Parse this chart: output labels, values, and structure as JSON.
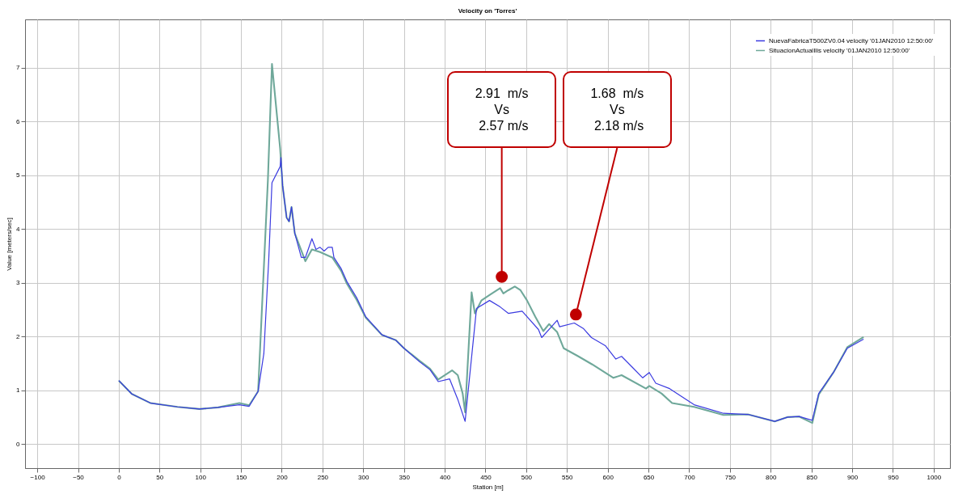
{
  "chart_data": {
    "type": "line",
    "title": "Velocity on 'Torres'",
    "xlabel": "Station [m]",
    "ylabel": "Value [meters/sec]",
    "xlim": [
      -115,
      1020
    ],
    "ylim": [
      -0.45,
      7.9
    ],
    "xticks": [
      -100,
      -50,
      0,
      50,
      100,
      150,
      200,
      250,
      300,
      350,
      400,
      450,
      500,
      550,
      600,
      650,
      700,
      750,
      800,
      850,
      900,
      950,
      1000
    ],
    "yticks": [
      0,
      1,
      2,
      3,
      4,
      5,
      6,
      7
    ],
    "grid": true,
    "legend": "top right",
    "series": [
      {
        "name": "NuevaFabricaT500ZV0.04 velocity '01JAN2010 12:50:00'",
        "color": "#3b3be0",
        "x": [
          0,
          16,
          39,
          72,
          99,
          122,
          148,
          160,
          171,
          178,
          184,
          188,
          198,
          199,
          201,
          206,
          209,
          212,
          216,
          224,
          229,
          237,
          242,
          247,
          252,
          257,
          262,
          264,
          273,
          280,
          292,
          303,
          323,
          340,
          350,
          369,
          382,
          392,
          406,
          416,
          425,
          439,
          455,
          468,
          478,
          495,
          515,
          519,
          531,
          538,
          541,
          559,
          570,
          580,
          597,
          610,
          617,
          630,
          643,
          651,
          659,
          676,
          706,
          742,
          772,
          805,
          821,
          835,
          851,
          859,
          877,
          894,
          914
        ],
        "values": [
          1.18,
          0.93,
          0.76,
          0.69,
          0.65,
          0.68,
          0.73,
          0.7,
          0.98,
          1.68,
          3.42,
          4.86,
          5.16,
          5.33,
          4.81,
          4.21,
          4.14,
          4.41,
          3.92,
          3.47,
          3.47,
          3.82,
          3.62,
          3.66,
          3.59,
          3.66,
          3.66,
          3.47,
          3.26,
          3.02,
          2.72,
          2.37,
          2.03,
          1.93,
          1.78,
          1.53,
          1.38,
          1.16,
          1.21,
          0.83,
          0.42,
          2.52,
          2.67,
          2.55,
          2.43,
          2.47,
          2.13,
          1.98,
          2.18,
          2.3,
          2.18,
          2.25,
          2.15,
          1.98,
          1.83,
          1.58,
          1.63,
          1.43,
          1.23,
          1.33,
          1.13,
          1.03,
          0.73,
          0.57,
          0.55,
          0.42,
          0.5,
          0.51,
          0.44,
          0.94,
          1.33,
          1.78,
          1.95
        ]
      },
      {
        "name": "SituacionActualIlis velocity '01JAN2010 12:50:00'",
        "color": "#6fa89a",
        "x": [
          0,
          16,
          39,
          72,
          99,
          122,
          148,
          160,
          171,
          183,
          188,
          198,
          201,
          206,
          209,
          212,
          216,
          229,
          237,
          247,
          262,
          273,
          280,
          292,
          303,
          323,
          340,
          350,
          369,
          382,
          392,
          409,
          416,
          422,
          425,
          433,
          437,
          445,
          455,
          468,
          472,
          478,
          486,
          493,
          501,
          511,
          521,
          528,
          538,
          546,
          564,
          581,
          607,
          617,
          647,
          651,
          666,
          679,
          706,
          742,
          772,
          805,
          821,
          835,
          851,
          859,
          877,
          894,
          914
        ],
        "values": [
          1.18,
          0.93,
          0.76,
          0.69,
          0.65,
          0.68,
          0.76,
          0.72,
          0.98,
          4.91,
          7.07,
          5.5,
          4.81,
          4.21,
          4.14,
          4.41,
          3.92,
          3.4,
          3.62,
          3.57,
          3.47,
          3.22,
          2.98,
          2.68,
          2.35,
          2.03,
          1.93,
          1.78,
          1.55,
          1.4,
          1.2,
          1.37,
          1.28,
          0.94,
          0.59,
          2.82,
          2.43,
          2.67,
          2.77,
          2.9,
          2.8,
          2.86,
          2.93,
          2.86,
          2.67,
          2.37,
          2.1,
          2.23,
          2.08,
          1.78,
          1.63,
          1.48,
          1.23,
          1.28,
          1.03,
          1.08,
          0.94,
          0.76,
          0.69,
          0.54,
          0.55,
          0.42,
          0.5,
          0.51,
          0.39,
          0.92,
          1.33,
          1.8,
          1.99
        ]
      }
    ],
    "annotations": [
      {
        "text": "2.91  m/s\nVs\n 2.57 m/s",
        "x": 470,
        "y": 3.11
      },
      {
        "text": "1.68  m/s\nVs\n 2.18 m/s",
        "x": 561,
        "y": 2.41
      }
    ]
  }
}
